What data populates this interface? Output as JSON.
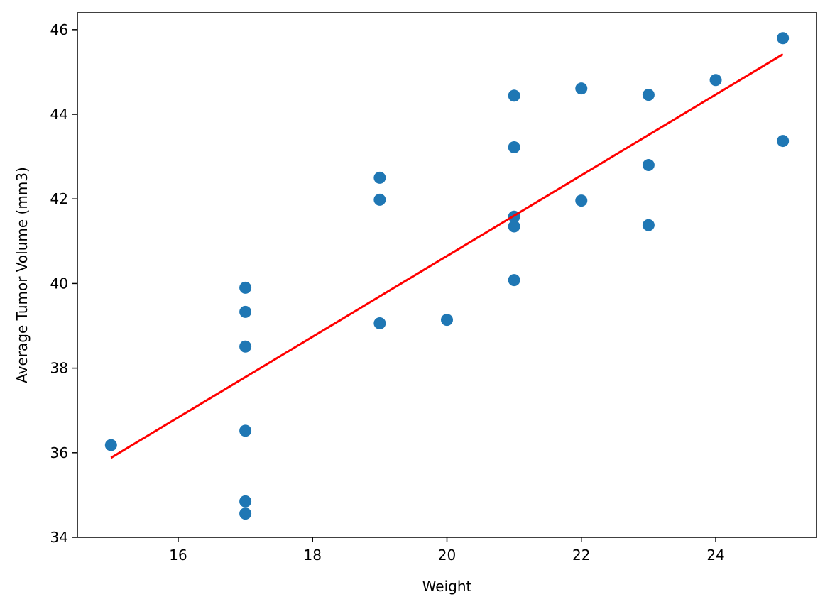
{
  "chart_data": {
    "type": "scatter",
    "title": "",
    "xlabel": "Weight",
    "ylabel": "Average Tumor Volume (mm3)",
    "xlim": [
      14.5,
      25.5
    ],
    "ylim": [
      34,
      46.4
    ],
    "x_ticks": [
      16,
      18,
      20,
      22,
      24
    ],
    "y_ticks": [
      34,
      36,
      38,
      40,
      42,
      44,
      46
    ],
    "grid": false,
    "legend": "none",
    "series": [
      {
        "type": "scatter",
        "color": "#1f77b4",
        "points": [
          {
            "x": 15,
            "y": 36.18
          },
          {
            "x": 17,
            "y": 39.9
          },
          {
            "x": 17,
            "y": 39.33
          },
          {
            "x": 17,
            "y": 38.51
          },
          {
            "x": 17,
            "y": 36.52
          },
          {
            "x": 17,
            "y": 34.85
          },
          {
            "x": 17,
            "y": 34.56
          },
          {
            "x": 19,
            "y": 42.5
          },
          {
            "x": 19,
            "y": 41.98
          },
          {
            "x": 19,
            "y": 39.06
          },
          {
            "x": 20,
            "y": 39.14
          },
          {
            "x": 21,
            "y": 44.44
          },
          {
            "x": 21,
            "y": 43.22
          },
          {
            "x": 21,
            "y": 41.58
          },
          {
            "x": 21,
            "y": 41.35
          },
          {
            "x": 21,
            "y": 40.08
          },
          {
            "x": 22,
            "y": 44.61
          },
          {
            "x": 22,
            "y": 41.96
          },
          {
            "x": 23,
            "y": 44.46
          },
          {
            "x": 23,
            "y": 42.8
          },
          {
            "x": 23,
            "y": 41.38
          },
          {
            "x": 24,
            "y": 44.81
          },
          {
            "x": 25,
            "y": 45.8
          },
          {
            "x": 25,
            "y": 43.37
          }
        ]
      },
      {
        "type": "line",
        "color": "#ff0000",
        "points": [
          {
            "x": 15,
            "y": 35.88
          },
          {
            "x": 25,
            "y": 45.42
          }
        ]
      }
    ]
  }
}
